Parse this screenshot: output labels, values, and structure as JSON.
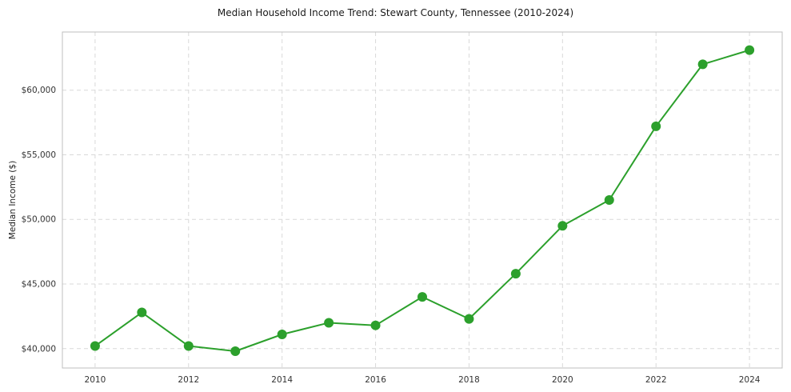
{
  "chart_data": {
    "type": "line",
    "title": "Median Household Income Trend: Stewart County, Tennessee (2010-2024)",
    "xlabel": "",
    "ylabel": "Median Income ($)",
    "x": [
      2010,
      2011,
      2012,
      2013,
      2014,
      2015,
      2016,
      2017,
      2018,
      2019,
      2020,
      2021,
      2022,
      2023,
      2024
    ],
    "series": [
      {
        "name": "Median Household Income",
        "values": [
          40200,
          42800,
          40200,
          39800,
          41100,
          42000,
          41800,
          44000,
          42300,
          45800,
          49500,
          51500,
          57200,
          62000,
          63100
        ],
        "color": "#2ca02c"
      }
    ],
    "xlim": [
      2009.3,
      2024.7
    ],
    "ylim": [
      38500,
      64500
    ],
    "xticks": [
      2010,
      2012,
      2014,
      2016,
      2018,
      2020,
      2022,
      2024
    ],
    "yticks": [
      40000,
      45000,
      50000,
      55000,
      60000
    ],
    "ytick_prefix": "$",
    "grid": true,
    "grid_style": "dashed",
    "legend": "none",
    "marker": "circle",
    "marker_radius": 6,
    "line_width": 2
  }
}
